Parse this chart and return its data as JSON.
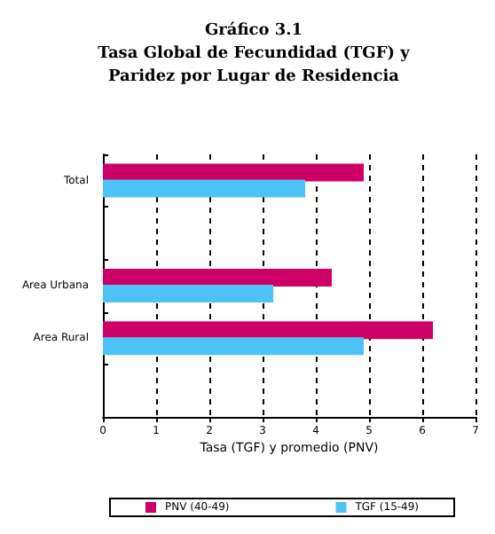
{
  "chart_data": {
    "type": "bar",
    "orientation": "horizontal",
    "title": "Gráfico 3.1\nTasa Global de Fecundidad (TGF) y\nParidez por Lugar de Residencia",
    "xlabel": "Tasa (TGF) y promedio (PNV)",
    "categories": [
      "Total",
      null,
      "Area Urbana",
      "Area Rural",
      null
    ],
    "series": [
      {
        "name": "PNV (40-49)",
        "color": "#cc0066",
        "values": [
          4.9,
          null,
          4.3,
          6.2,
          null
        ]
      },
      {
        "name": "TGF (15-49)",
        "color": "#4dc3f5",
        "values": [
          3.8,
          null,
          3.2,
          4.9,
          null
        ]
      }
    ],
    "xlim": [
      0,
      7
    ],
    "xticks": [
      0,
      1,
      2,
      3,
      4,
      5,
      6,
      7
    ],
    "grid": "x",
    "legend": "bottom"
  }
}
